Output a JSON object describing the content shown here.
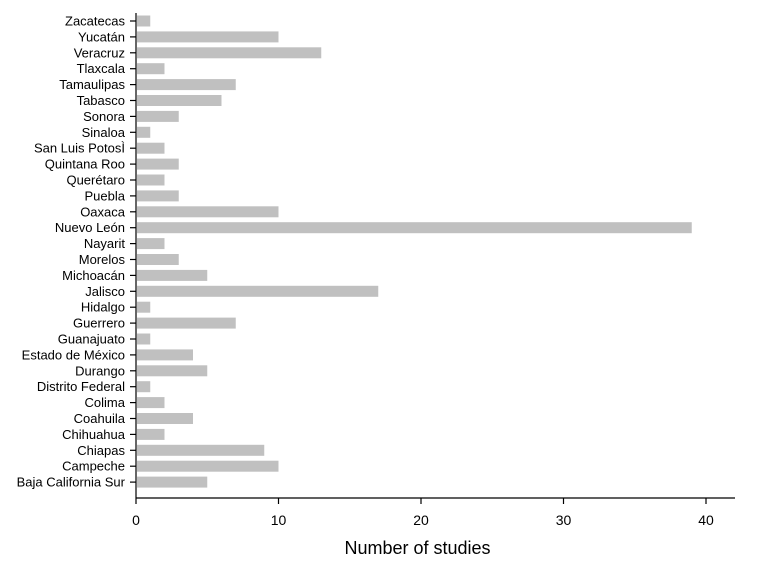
{
  "chart_data": {
    "type": "bar",
    "orientation": "horizontal",
    "xlabel": "Number of studies",
    "ylabel": "",
    "xlim": [
      0,
      42
    ],
    "xticks": [
      0,
      10,
      20,
      30,
      40
    ],
    "grid": false,
    "bar_color": "#c0c0c0",
    "categories": [
      "Zacatecas",
      "Yucatán",
      "Veracruz",
      "Tlaxcala",
      "Tamaulipas",
      "Tabasco",
      "Sonora",
      "Sinaloa",
      "San Luis PotosÌ",
      "Quintana Roo",
      "Querétaro",
      "Puebla",
      "Oaxaca",
      "Nuevo León",
      "Nayarit",
      "Morelos",
      "Michoacán",
      "Jalisco",
      "Hidalgo",
      "Guerrero",
      "Guanajuato",
      "Estado de México",
      "Durango",
      "Distrito Federal",
      "Colima",
      "Coahuila",
      "Chihuahua",
      "Chiapas",
      "Campeche",
      "Baja California Sur"
    ],
    "values": [
      1,
      10,
      13,
      2,
      7,
      6,
      3,
      1,
      2,
      3,
      2,
      3,
      10,
      39,
      2,
      3,
      5,
      17,
      1,
      7,
      1,
      4,
      5,
      1,
      2,
      4,
      2,
      9,
      10,
      5
    ]
  }
}
